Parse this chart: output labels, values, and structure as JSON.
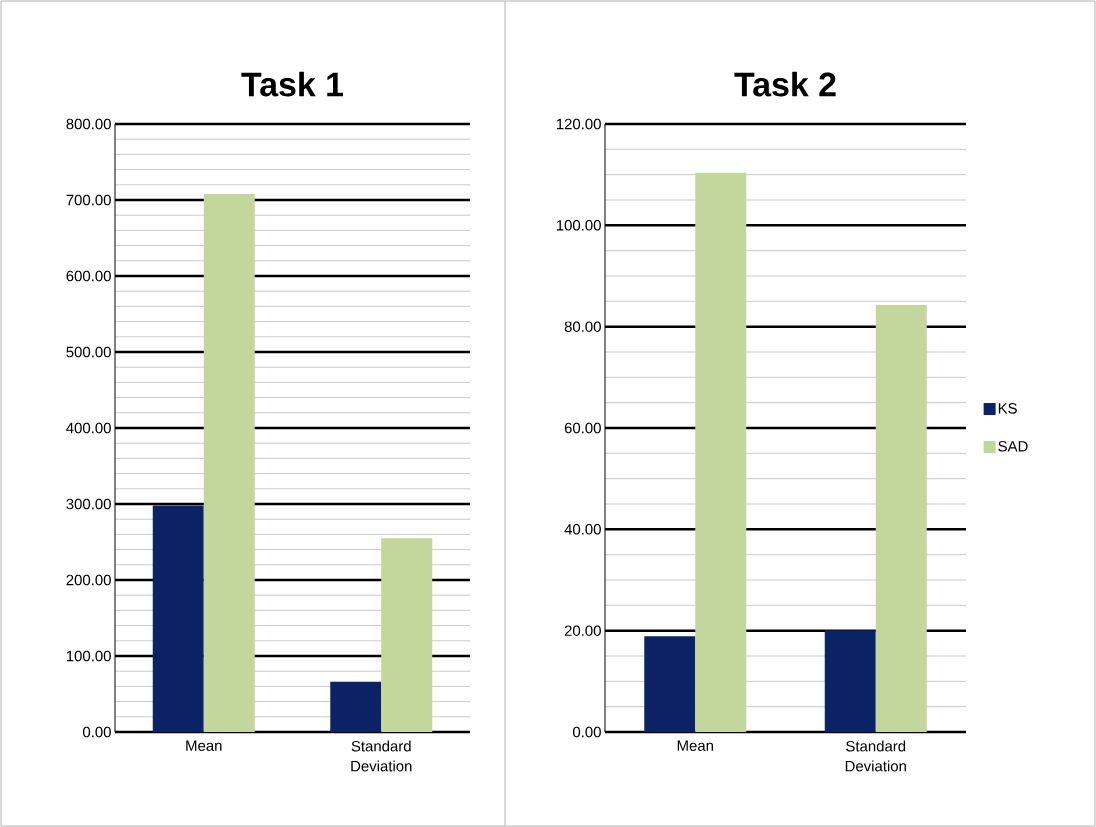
{
  "chart_data": [
    {
      "type": "bar",
      "title": "Task 1",
      "categories": [
        "Mean",
        "Standard Deviation"
      ],
      "series": [
        {
          "color": "#0b2264",
          "values": [
            298,
            66
          ]
        },
        {
          "color": "#c3d69b",
          "values": [
            708,
            255
          ]
        }
      ],
      "ylim": [
        0,
        800
      ],
      "yticks": [
        {
          "value": 0,
          "label": "0.00"
        },
        {
          "value": 20,
          "label": null
        },
        {
          "value": 40,
          "label": null
        },
        {
          "value": 60,
          "label": null
        },
        {
          "value": 80,
          "label": null
        },
        {
          "value": 100,
          "label": "100.00"
        },
        {
          "value": 120,
          "label": null
        },
        {
          "value": 140,
          "label": null
        },
        {
          "value": 160,
          "label": null
        },
        {
          "value": 180,
          "label": null
        },
        {
          "value": 200,
          "label": "200.00"
        },
        {
          "value": 220,
          "label": null
        },
        {
          "value": 240,
          "label": null
        },
        {
          "value": 260,
          "label": null
        },
        {
          "value": 280,
          "label": null
        },
        {
          "value": 300,
          "label": "300.00"
        },
        {
          "value": 320,
          "label": null
        },
        {
          "value": 340,
          "label": null
        },
        {
          "value": 360,
          "label": null
        },
        {
          "value": 380,
          "label": null
        },
        {
          "value": 400,
          "label": "400.00"
        },
        {
          "value": 420,
          "label": null
        },
        {
          "value": 440,
          "label": null
        },
        {
          "value": 460,
          "label": null
        },
        {
          "value": 480,
          "label": null
        },
        {
          "value": 500,
          "label": "500.00"
        },
        {
          "value": 520,
          "label": null
        },
        {
          "value": 540,
          "label": null
        },
        {
          "value": 560,
          "label": null
        },
        {
          "value": 580,
          "label": null
        },
        {
          "value": 600,
          "label": "600.00"
        },
        {
          "value": 620,
          "label": null
        },
        {
          "value": 640,
          "label": null
        },
        {
          "value": 660,
          "label": null
        },
        {
          "value": 680,
          "label": null
        },
        {
          "value": 700,
          "label": "700.00"
        },
        {
          "value": 720,
          "label": null
        },
        {
          "value": 740,
          "label": null
        },
        {
          "value": 760,
          "label": null
        },
        {
          "value": 780,
          "label": null
        },
        {
          "value": 800,
          "label": "800.00"
        }
      ],
      "grid": "y"
    },
    {
      "type": "bar",
      "title": "Task 2",
      "categories": [
        "Mean",
        "Standard Deviation"
      ],
      "series": [
        {
          "name": "KS",
          "color": "#0b2264",
          "values": [
            18.9,
            20.1
          ]
        },
        {
          "name": "SAD",
          "color": "#c3d69b",
          "values": [
            110.4,
            84.3
          ]
        }
      ],
      "ylim": [
        0,
        120
      ],
      "yticks": [
        {
          "value": 0,
          "label": "0.00"
        },
        {
          "value": 5,
          "label": null
        },
        {
          "value": 10,
          "label": null
        },
        {
          "value": 15,
          "label": null
        },
        {
          "value": 20,
          "label": "20.00"
        },
        {
          "value": 25,
          "label": null
        },
        {
          "value": 30,
          "label": null
        },
        {
          "value": 35,
          "label": null
        },
        {
          "value": 40,
          "label": "40.00"
        },
        {
          "value": 45,
          "label": null
        },
        {
          "value": 50,
          "label": null
        },
        {
          "value": 55,
          "label": null
        },
        {
          "value": 60,
          "label": "60.00"
        },
        {
          "value": 65,
          "label": null
        },
        {
          "value": 70,
          "label": null
        },
        {
          "value": 75,
          "label": null
        },
        {
          "value": 80,
          "label": "80.00"
        },
        {
          "value": 85,
          "label": null
        },
        {
          "value": 90,
          "label": null
        },
        {
          "value": 95,
          "label": null
        },
        {
          "value": 100,
          "label": "100.00"
        },
        {
          "value": 105,
          "label": null
        },
        {
          "value": 110,
          "label": null
        },
        {
          "value": 115,
          "label": null
        },
        {
          "value": 120,
          "label": "120.00"
        }
      ],
      "grid": "y",
      "legend": "right"
    }
  ]
}
